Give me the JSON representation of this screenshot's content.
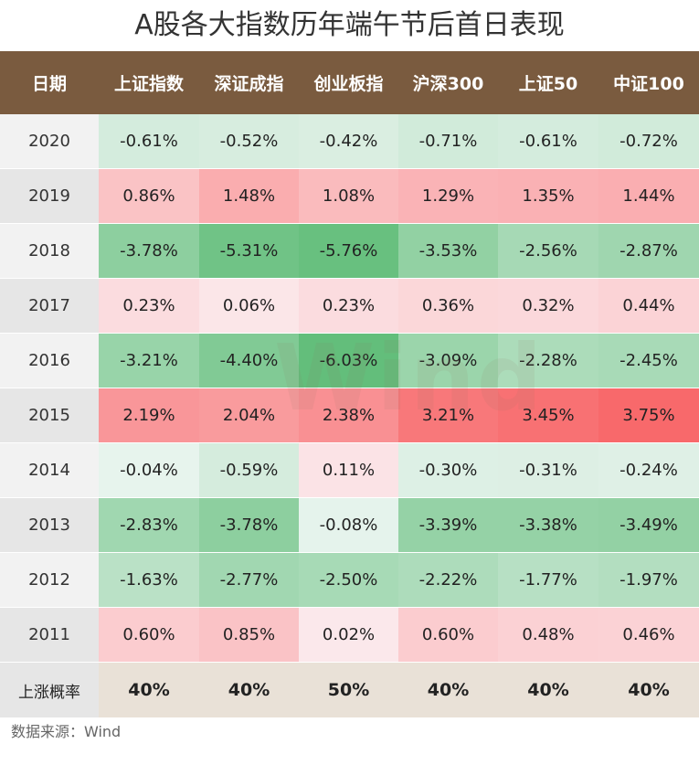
{
  "title": "A股各大指数历年端午节后首日表现",
  "chart_data": {
    "type": "table",
    "columns": [
      "日期",
      "上证指数",
      "深证成指",
      "创业板指",
      "沪深300",
      "上证50",
      "中证100"
    ],
    "rows": [
      {
        "year": "2020",
        "values": [
          "-0.61%",
          "-0.52%",
          "-0.42%",
          "-0.71%",
          "-0.61%",
          "-0.72%"
        ]
      },
      {
        "year": "2019",
        "values": [
          "0.86%",
          "1.48%",
          "1.08%",
          "1.29%",
          "1.35%",
          "1.44%"
        ]
      },
      {
        "year": "2018",
        "values": [
          "-3.78%",
          "-5.31%",
          "-5.76%",
          "-3.53%",
          "-2.56%",
          "-2.87%"
        ]
      },
      {
        "year": "2017",
        "values": [
          "0.23%",
          "0.06%",
          "0.23%",
          "0.36%",
          "0.32%",
          "0.44%"
        ]
      },
      {
        "year": "2016",
        "values": [
          "-3.21%",
          "-4.40%",
          "-6.03%",
          "-3.09%",
          "-2.28%",
          "-2.45%"
        ]
      },
      {
        "year": "2015",
        "values": [
          "2.19%",
          "2.04%",
          "2.38%",
          "3.21%",
          "3.45%",
          "3.75%"
        ]
      },
      {
        "year": "2014",
        "values": [
          "-0.04%",
          "-0.59%",
          "0.11%",
          "-0.30%",
          "-0.31%",
          "-0.24%"
        ]
      },
      {
        "year": "2013",
        "values": [
          "-2.83%",
          "-3.78%",
          "-0.08%",
          "-3.39%",
          "-3.38%",
          "-3.49%"
        ]
      },
      {
        "year": "2012",
        "values": [
          "-1.63%",
          "-2.77%",
          "-2.50%",
          "-2.22%",
          "-1.77%",
          "-1.97%"
        ]
      },
      {
        "year": "2011",
        "values": [
          "0.60%",
          "0.85%",
          "0.02%",
          "0.60%",
          "0.48%",
          "0.46%"
        ]
      }
    ],
    "footer": {
      "label": "上涨概率",
      "values": [
        "40%",
        "40%",
        "50%",
        "40%",
        "40%",
        "40%"
      ]
    }
  },
  "watermark": "Wind",
  "source": "数据来源：Wind",
  "colors": {
    "header_bg": "#7a5b3f",
    "footer_bg": "#e9e1d7",
    "date_bg_light": "#f2f2f2",
    "date_bg_dark": "#e6e6e6",
    "positive": "#f8696b",
    "negative": "#63be7b"
  }
}
